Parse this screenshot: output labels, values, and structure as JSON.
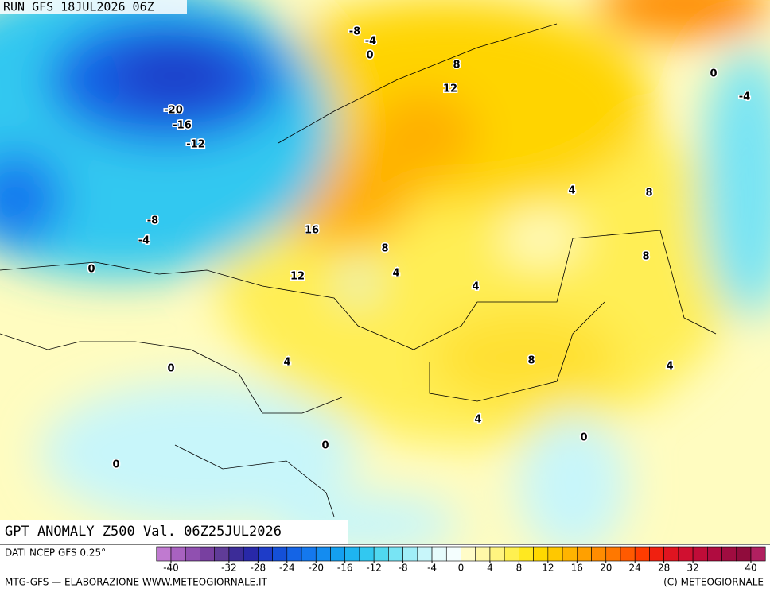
{
  "header": {
    "run": "RUN GFS 18JUL2026 06Z"
  },
  "map": {
    "title": "GPT ANOMALY Z500 Val. 06Z25JUL2026",
    "contour_labels": [
      -8,
      -4,
      0,
      8,
      12,
      0,
      -4,
      -20,
      -16,
      -12,
      4,
      8,
      -8,
      -4,
      16,
      8,
      8,
      0,
      12,
      4,
      4,
      4,
      0,
      8,
      4,
      4,
      0,
      0,
      0
    ],
    "colorbar": {
      "range": [
        -40,
        40
      ],
      "ticks": [
        -40,
        -32,
        -28,
        -24,
        -20,
        -16,
        -12,
        -8,
        -4,
        0,
        4,
        8,
        12,
        16,
        20,
        24,
        28,
        32,
        40
      ],
      "colors": [
        "#c07ad0",
        "#a862c0",
        "#9050b0",
        "#7840a0",
        "#603c98",
        "#3c2c98",
        "#2828a8",
        "#1e3cc8",
        "#1450d8",
        "#1464e6",
        "#1478ee",
        "#148cf0",
        "#14a0f0",
        "#1eb4f0",
        "#32c8f0",
        "#50d8f0",
        "#78e4f4",
        "#a0eef8",
        "#c8f6fa",
        "#e6fcfc",
        "#f4fefe",
        "#fffcc8",
        "#fff8a8",
        "#fff480",
        "#fff050",
        "#ffe820",
        "#ffd800",
        "#ffc800",
        "#ffb400",
        "#ffa000",
        "#ff8c00",
        "#ff7800",
        "#ff5a00",
        "#ff3c00",
        "#f02010",
        "#e01420",
        "#d01030",
        "#c00c38",
        "#b00c40",
        "#a00c40",
        "#900c3c",
        "#b02060"
      ]
    }
  },
  "footer": {
    "source": "DATI NCEP GFS 0.25°",
    "credit": "MTG-GFS — ELABORAZIONE WWW.METEOGIORNALE.IT",
    "copyright": "(C) METEOGIORNALE"
  }
}
